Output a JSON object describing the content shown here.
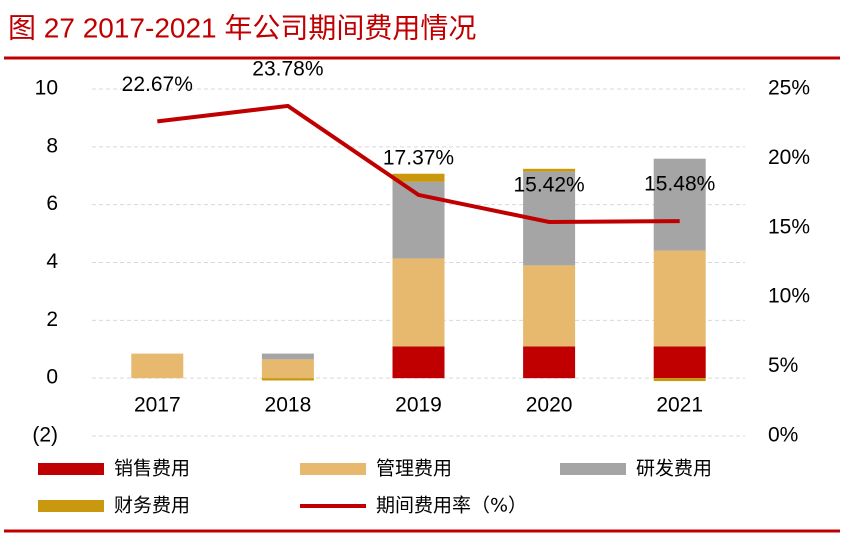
{
  "chart_data": {
    "type": "bar",
    "title": "图 27 2017-2021 年公司期间费用情况",
    "categories": [
      "2017",
      "2018",
      "2019",
      "2020",
      "2021"
    ],
    "series": [
      {
        "name": "销售费用",
        "type": "bar",
        "color": "#c00000",
        "values": [
          0,
          0,
          1.1,
          1.1,
          1.1
        ]
      },
      {
        "name": "管理费用",
        "type": "bar",
        "color": "#e6b96e",
        "values": [
          0.85,
          0.65,
          3.04,
          2.8,
          3.31
        ]
      },
      {
        "name": "研发费用",
        "type": "bar",
        "color": "#a5a5a5",
        "values": [
          0,
          0.2,
          2.65,
          3.24,
          3.18
        ]
      },
      {
        "name": "财务费用",
        "type": "bar",
        "color": "#c9980f",
        "values": [
          0,
          -0.08,
          0.28,
          0.1,
          -0.1
        ]
      },
      {
        "name": "期间费用率（%）",
        "type": "line",
        "axis": "y2",
        "color": "#c00000",
        "values": [
          22.67,
          23.78,
          17.37,
          15.42,
          15.48
        ],
        "value_labels": [
          "22.67%",
          "23.78%",
          "17.37%",
          "15.42%",
          "15.48%"
        ]
      }
    ],
    "ylim": [
      -2,
      10
    ],
    "yticks": [
      {
        "value": -2,
        "label": "(2)"
      },
      0,
      2,
      4,
      6,
      8,
      10
    ],
    "y2lim": [
      0,
      25
    ],
    "y2ticks": [
      {
        "value": 0,
        "label": "0%"
      },
      {
        "value": 5,
        "label": "5%"
      },
      {
        "value": 10,
        "label": "10%"
      },
      {
        "value": 15,
        "label": "15%"
      },
      {
        "value": 20,
        "label": "20%"
      },
      {
        "value": 25,
        "label": "25%"
      }
    ],
    "grid": true
  }
}
